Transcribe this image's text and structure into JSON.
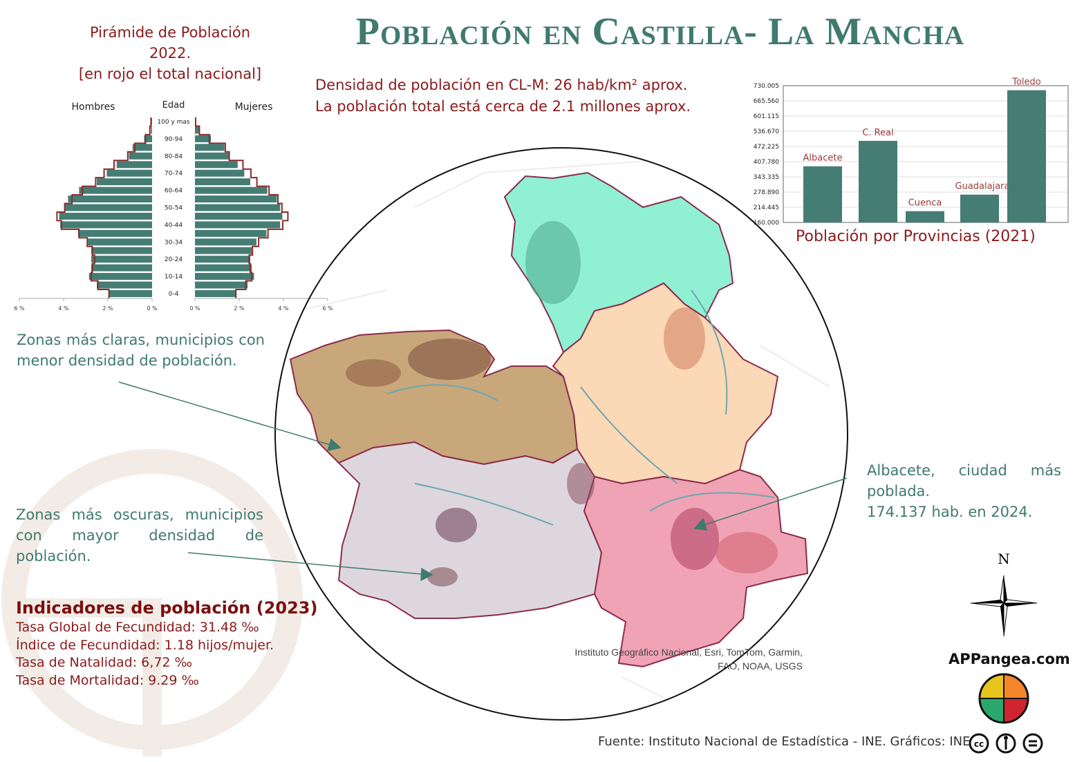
{
  "title": "Población en Castilla- La Mancha",
  "pyramid": {
    "title_lines": [
      "Pirámide de Población",
      "2022.",
      "[en rojo el total nacional]"
    ],
    "header_men": "Hombres",
    "header_age": "Edad",
    "header_women": "Mujeres",
    "age_labels": [
      "100 y mas",
      "90-94",
      "80-84",
      "70-74",
      "60-64",
      "50-54",
      "40-44",
      "30-34",
      "20-24",
      "10-14",
      "0-4"
    ],
    "axis_ticks_men": [
      "6 %",
      "4 %",
      "2 %",
      "0 %"
    ],
    "axis_ticks_women": [
      "0 %",
      "2 %",
      "4 %",
      "6 %"
    ]
  },
  "density_lines": [
    "Densidad de población en CL-M: 26 hab/km² aprox.",
    "La población total está cerca de 2.1 millones aprox."
  ],
  "notes": {
    "light_zones": "Zonas más claras, municipios con menor densidad de población.",
    "dark_zones": "Zonas más oscuras, municipios con mayor densidad de población.",
    "albacete": [
      "Albacete, ciudad más poblada.",
      "174.137 hab. en 2024."
    ]
  },
  "indicators": {
    "heading": "Indicadores de población (2023)",
    "items": [
      "Tasa Global de Fecundidad: 31.48 ‰",
      "Índice de Fecundidad: 1.18 hijos/mujer.",
      "Tasa de Natalidad: 6,72 ‰",
      "Tasa de Mortalidad: 9.29 ‰"
    ]
  },
  "map": {
    "attribution_lines": [
      "Instituto Geográfico Nacional, Esri, TomTom, Garmin,",
      "FAO, NOAA, USGS"
    ],
    "compass_label": "N",
    "province_colors": {
      "Guadalajara": "#8ff0d2",
      "Cuenca": "#fbd8b6",
      "Toledo": "#c8a77b",
      "Ciudad Real": "#ddd7dd",
      "Albacete": "#efa3b4"
    }
  },
  "source": "Fuente: Instituto Nacional de Estadística - INE. Gráficos: INE",
  "brand": "APPangea.com",
  "license_icons": [
    "cc-icon",
    "attribution-icon",
    "no-derivatives-icon"
  ],
  "colors": {
    "accent_teal": "#3f7a6e",
    "accent_red": "#8b1a1a",
    "bar": "#457d74",
    "national_outline": "#8b2a2a"
  },
  "chart_data": [
    {
      "type": "bar",
      "title": "Población por Provincias (2021)",
      "categories": [
        "Albacete",
        "C. Real",
        "Cuenca",
        "Guadalajara",
        "Toledo"
      ],
      "values": [
        394000,
        500000,
        207000,
        276000,
        711000
      ],
      "ylim": [
        160000,
        730005
      ],
      "yticks": [
        "160.000",
        "214.445",
        "278.890",
        "343.335",
        "407.780",
        "472.225",
        "536.670",
        "601.115",
        "665.560",
        "730.005"
      ],
      "grid": true
    },
    {
      "type": "bar",
      "subtype": "population-pyramid",
      "title": "Pirámide de Población 2022.",
      "age_groups": [
        "100 y mas",
        "95-99",
        "90-94",
        "85-89",
        "80-84",
        "75-79",
        "70-74",
        "65-69",
        "60-64",
        "55-59",
        "50-54",
        "45-49",
        "40-44",
        "35-39",
        "30-34",
        "25-29",
        "20-24",
        "15-19",
        "10-14",
        "5-9",
        "0-4"
      ],
      "series": [
        {
          "name": "Hombres",
          "values": [
            0.02,
            0.05,
            0.36,
            0.88,
            1.05,
            1.6,
            2.05,
            2.5,
            3.3,
            3.8,
            3.95,
            4.2,
            4.15,
            3.35,
            2.9,
            2.75,
            2.75,
            2.75,
            2.85,
            2.5,
            1.95
          ]
        },
        {
          "name": "Mujeres",
          "values": [
            0.02,
            0.17,
            0.72,
            1.33,
            1.53,
            1.93,
            2.23,
            2.5,
            3.27,
            3.7,
            3.85,
            3.95,
            3.85,
            3.23,
            2.78,
            2.57,
            2.5,
            2.57,
            2.67,
            2.38,
            1.83
          ]
        },
        {
          "name": "total nacional Hombres",
          "values": [
            0.05,
            0.1,
            0.3,
            0.78,
            1.1,
            1.72,
            2.17,
            2.55,
            3.15,
            3.62,
            3.95,
            4.3,
            4.1,
            3.3,
            2.93,
            2.7,
            2.6,
            2.7,
            2.75,
            2.45,
            1.95
          ]
        },
        {
          "name": "total nacional Mujeres",
          "values": [
            0.03,
            0.2,
            0.65,
            1.37,
            1.55,
            2.17,
            2.53,
            2.8,
            3.35,
            3.75,
            3.93,
            4.2,
            3.97,
            3.3,
            2.88,
            2.6,
            2.45,
            2.5,
            2.57,
            2.3,
            1.85
          ]
        }
      ],
      "xlim": [
        0,
        6
      ],
      "unit": "%"
    }
  ]
}
